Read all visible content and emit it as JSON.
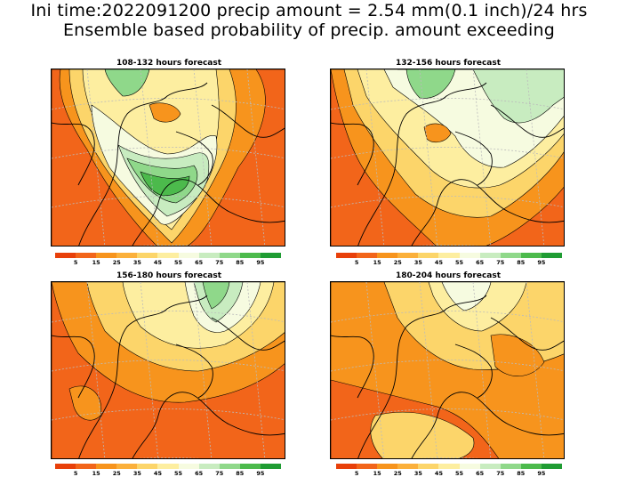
{
  "title": {
    "line1": "Ini time:2022091200 precip amount = 2.54 mm(0.1 inch)/24 hrs",
    "line2": "Ensemble based probability of precip. amount exceeding"
  },
  "panels": [
    {
      "title": "108-132 hours forecast",
      "style": "green-center"
    },
    {
      "title": "132-156 hours forecast",
      "style": "green-north"
    },
    {
      "title": "156-180 hours forecast",
      "style": "green-narrow"
    },
    {
      "title": "180-204 hours forecast",
      "style": "dry"
    }
  ],
  "colorbar": {
    "labels": [
      "5",
      "15",
      "25",
      "35",
      "45",
      "55",
      "65",
      "75",
      "85",
      "95"
    ],
    "colors": [
      "#e8400a",
      "#f2651a",
      "#f7941d",
      "#fbb03b",
      "#fcd56a",
      "#fdeea0",
      "#f6fbe0",
      "#c8ecc0",
      "#8fd88a",
      "#4cba4c",
      "#1f9c33"
    ]
  }
}
